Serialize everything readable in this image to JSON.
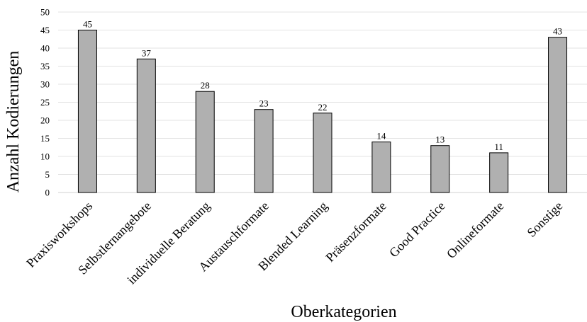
{
  "chart_data": {
    "type": "bar",
    "categories": [
      "Praxisworkshops",
      "Selbstlernangebote",
      "individuelle Beratung",
      "Austauschformate",
      "Blended Learning",
      "Präsenzformate",
      "Good Practice",
      "Onlineformate",
      "Sonstige"
    ],
    "values": [
      45,
      37,
      28,
      23,
      22,
      14,
      13,
      11,
      43
    ],
    "xlabel": "Oberkategorien",
    "ylabel": "Anzahl Kodierungen",
    "ylim": [
      0,
      50
    ],
    "yticks": [
      0,
      5,
      10,
      15,
      20,
      25,
      30,
      35,
      40,
      45,
      50
    ],
    "grid": true,
    "legend": "none",
    "colors": {
      "bar_fill": "#b0b0b0",
      "bar_stroke": "#000000",
      "grid": "#e3e3e3",
      "axis": "#d0d0d0"
    }
  }
}
